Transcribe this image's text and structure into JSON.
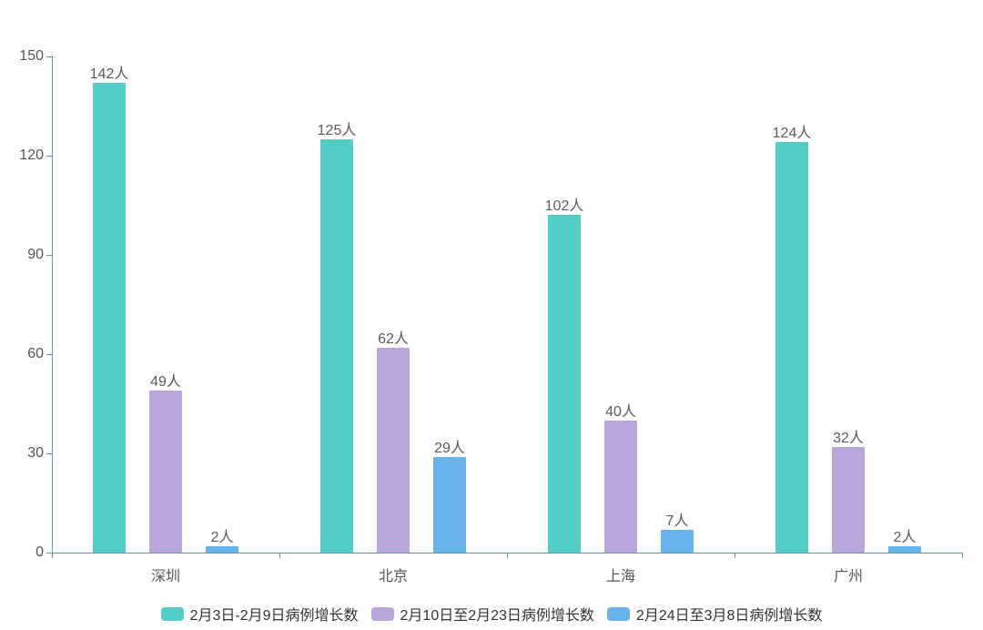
{
  "chart_data": {
    "type": "bar",
    "title": "",
    "xlabel": "",
    "ylabel": "",
    "categories": [
      "深圳",
      "北京",
      "上海",
      "广州"
    ],
    "series": [
      {
        "name": "2月3日-2月9日病例增长数",
        "color": "#53CDC7",
        "values": [
          142,
          125,
          102,
          124
        ]
      },
      {
        "name": "2月10日至2月23日病例增长数",
        "color": "#B9A7DB",
        "values": [
          49,
          62,
          40,
          32
        ]
      },
      {
        "name": "2月24日至3月8日病例增长数",
        "color": "#66B4EB",
        "values": [
          2,
          29,
          7,
          2
        ]
      }
    ],
    "value_suffix": "人",
    "yticks": [
      0,
      30,
      60,
      90,
      120,
      150
    ],
    "ylim": [
      0,
      150
    ],
    "grid": false,
    "legend_position": "bottom"
  },
  "colors": {
    "axis": "#5E98A6",
    "tick_label": "#555555",
    "value_label": "#5B5B5B",
    "legend_text": "#333333",
    "background": "#FFFFFF"
  }
}
